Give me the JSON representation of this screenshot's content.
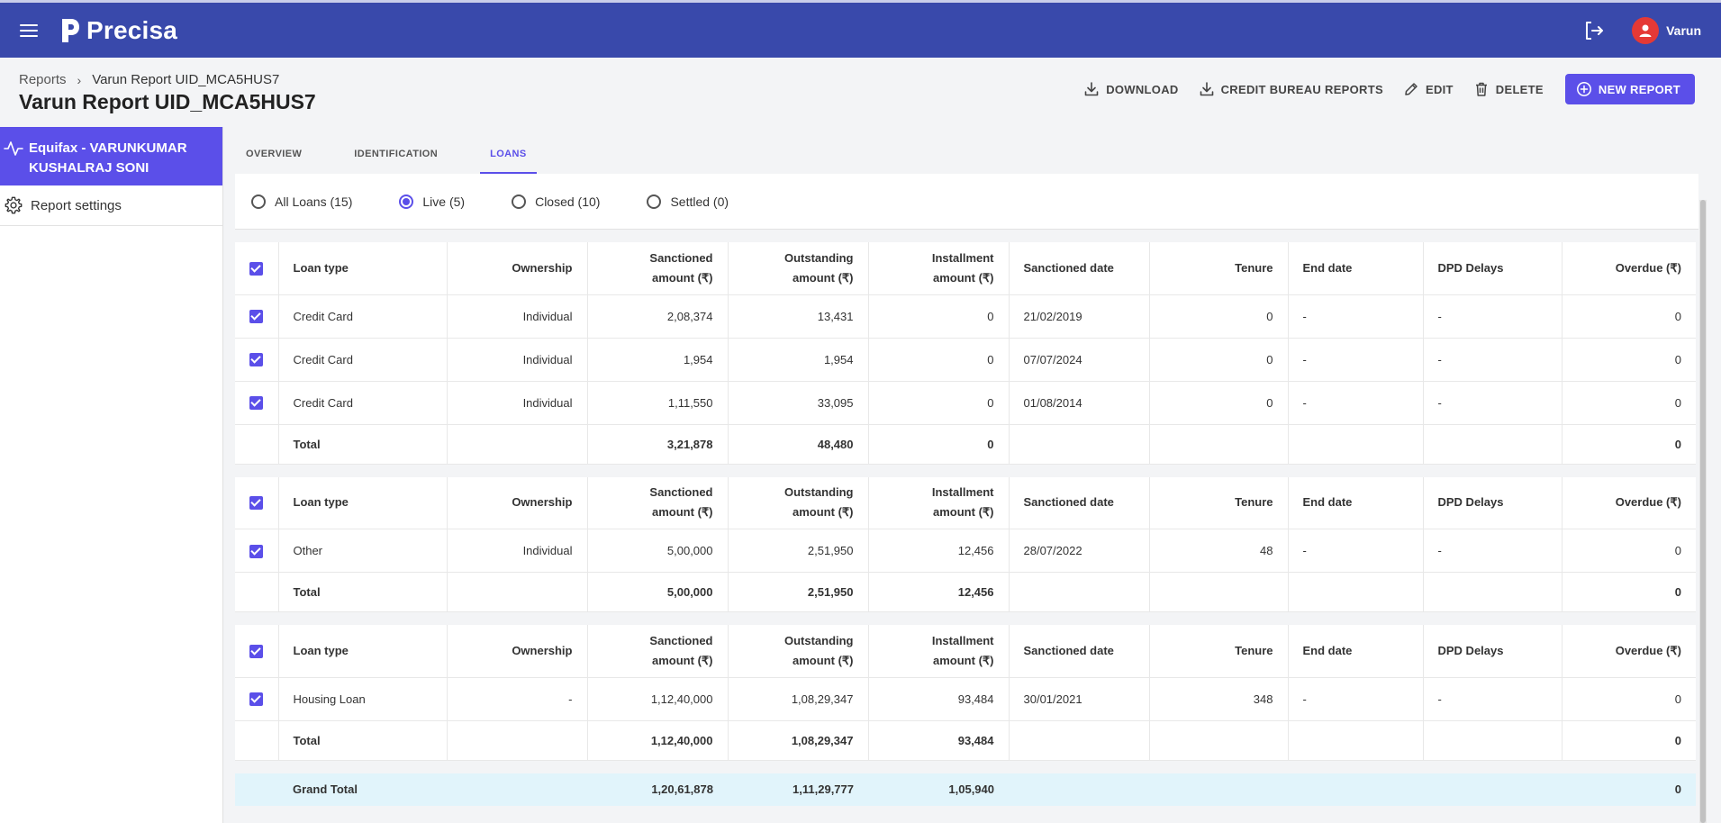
{
  "app": {
    "brand": "Precisa",
    "user": "Varun"
  },
  "breadcrumb": {
    "root": "Reports",
    "current": "Varun Report UID_MCA5HUS7"
  },
  "page_title": "Varun Report UID_MCA5HUS7",
  "actions": {
    "download": "DOWNLOAD",
    "credit_bureau": "CREDIT BUREAU REPORTS",
    "edit": "EDIT",
    "delete": "DELETE",
    "new_report": "NEW REPORT"
  },
  "sidebar": {
    "active_item": {
      "line1": "Equifax - VARUNKUMAR",
      "line2": "KUSHALRAJ SONI"
    },
    "settings": "Report settings"
  },
  "tabs": [
    "OVERVIEW",
    "IDENTIFICATION",
    "LOANS"
  ],
  "filters": {
    "all": "All Loans (15)",
    "live": "Live (5)",
    "closed": "Closed (10)",
    "settled": "Settled (0)",
    "selected": "live"
  },
  "columns": {
    "loan_type": "Loan type",
    "ownership": "Ownership",
    "sanctioned_1": "Sanctioned",
    "sanctioned_2": "amount (₹)",
    "outstanding_1": "Outstanding",
    "outstanding_2": "amount (₹)",
    "installment_1": "Installment",
    "installment_2": "amount (₹)",
    "sanctioned_date": "Sanctioned date",
    "tenure": "Tenure",
    "end_date": "End date",
    "dpd": "DPD Delays",
    "overdue": "Overdue (₹)"
  },
  "groups": [
    {
      "rows": [
        {
          "type": "Credit Card",
          "ownership": "Individual",
          "sanctioned": "2,08,374",
          "outstanding": "13,431",
          "installment": "0",
          "date": "21/02/2019",
          "tenure": "0",
          "end": "-",
          "dpd": "-",
          "overdue": "0"
        },
        {
          "type": "Credit Card",
          "ownership": "Individual",
          "sanctioned": "1,954",
          "outstanding": "1,954",
          "installment": "0",
          "date": "07/07/2024",
          "tenure": "0",
          "end": "-",
          "dpd": "-",
          "overdue": "0"
        },
        {
          "type": "Credit Card",
          "ownership": "Individual",
          "sanctioned": "1,11,550",
          "outstanding": "33,095",
          "installment": "0",
          "date": "01/08/2014",
          "tenure": "0",
          "end": "-",
          "dpd": "-",
          "overdue": "0"
        }
      ],
      "total": {
        "label": "Total",
        "sanctioned": "3,21,878",
        "outstanding": "48,480",
        "installment": "0",
        "overdue": "0"
      }
    },
    {
      "rows": [
        {
          "type": "Other",
          "ownership": "Individual",
          "sanctioned": "5,00,000",
          "outstanding": "2,51,950",
          "installment": "12,456",
          "date": "28/07/2022",
          "tenure": "48",
          "end": "-",
          "dpd": "-",
          "overdue": "0"
        }
      ],
      "total": {
        "label": "Total",
        "sanctioned": "5,00,000",
        "outstanding": "2,51,950",
        "installment": "12,456",
        "overdue": "0"
      }
    },
    {
      "rows": [
        {
          "type": "Housing Loan",
          "ownership": "-",
          "sanctioned": "1,12,40,000",
          "outstanding": "1,08,29,347",
          "installment": "93,484",
          "date": "30/01/2021",
          "tenure": "348",
          "end": "-",
          "dpd": "-",
          "overdue": "0"
        }
      ],
      "total": {
        "label": "Total",
        "sanctioned": "1,12,40,000",
        "outstanding": "1,08,29,347",
        "installment": "93,484",
        "overdue": "0"
      }
    }
  ],
  "grand_total": {
    "label": "Grand Total",
    "sanctioned": "1,20,61,878",
    "outstanding": "1,11,29,777",
    "installment": "1,05,940",
    "overdue": "0"
  },
  "colors": {
    "header": "#3949ab",
    "accent": "#5b4fe9",
    "grand_total_bg": "#e1f4fb",
    "avatar": "#e53935"
  }
}
